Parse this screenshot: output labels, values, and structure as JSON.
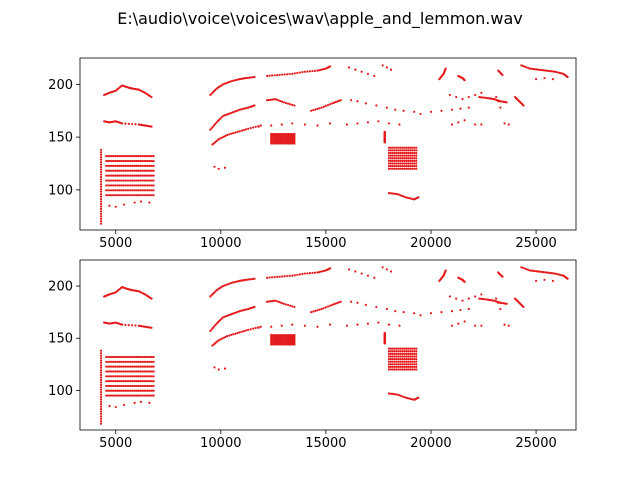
{
  "figure": {
    "title": "E:\\audio\\voice\\voices\\wav\\apple_and_lemmon.wav"
  },
  "chart_data": [
    {
      "type": "scatter",
      "marker_color": "#e41a1c",
      "xlim": [
        3300,
        26900
      ],
      "ylim": [
        62,
        225
      ],
      "xticks": [
        5000,
        10000,
        15000,
        20000,
        25000
      ],
      "yticks": [
        100,
        150,
        200
      ],
      "xtick_labels": [
        "5000",
        "10000",
        "15000",
        "20000",
        "25000"
      ],
      "ytick_labels": [
        "100",
        "150",
        "200"
      ],
      "grid": false,
      "segments": [
        {
          "kind": "dense_vertical",
          "x": [
            4300,
            4300
          ],
          "y": [
            68,
            138
          ]
        },
        {
          "kind": "dense_band",
          "x": [
            4550,
            6800
          ],
          "y": [
            95,
            132
          ]
        },
        {
          "kind": "points",
          "x": [
            4700,
            5000,
            5400,
            5900,
            6200,
            6600
          ],
          "y": [
            85,
            84,
            86,
            88,
            89,
            88
          ]
        },
        {
          "kind": "curve",
          "x": [
            4450,
            4700,
            5000,
            5300,
            5600,
            5800,
            6100,
            6400,
            6700
          ],
          "y": [
            190,
            192,
            194,
            199,
            197,
            196,
            195,
            192,
            188
          ]
        },
        {
          "kind": "curve",
          "x": [
            4450,
            4700,
            5000,
            5300,
            6100,
            6400,
            6700
          ],
          "y": [
            165,
            164,
            165,
            163,
            162,
            161,
            160
          ]
        },
        {
          "kind": "curve",
          "x": [
            9500,
            9800,
            10100,
            10500,
            10900,
            11200,
            11600
          ],
          "y": [
            190,
            196,
            200,
            203,
            205,
            206,
            207
          ]
        },
        {
          "kind": "curve",
          "x": [
            9500,
            9800,
            10100,
            10500,
            10900,
            11300,
            11600
          ],
          "y": [
            157,
            164,
            170,
            173,
            176,
            178,
            180
          ]
        },
        {
          "kind": "curve",
          "x": [
            9600,
            9900,
            10300,
            10800,
            11300,
            11900
          ],
          "y": [
            143,
            148,
            152,
            155,
            158,
            161
          ]
        },
        {
          "kind": "points",
          "x": [
            9700,
            9900,
            10200
          ],
          "y": [
            122,
            120,
            121
          ]
        },
        {
          "kind": "curve",
          "x": [
            12200,
            12800,
            13400,
            14000,
            14600,
            15000,
            15200
          ],
          "y": [
            208,
            209,
            210,
            212,
            213,
            215,
            217
          ]
        },
        {
          "kind": "curve",
          "x": [
            12200,
            12600,
            13000,
            13500
          ],
          "y": [
            185,
            186,
            183,
            180
          ]
        },
        {
          "kind": "points",
          "x": [
            11800,
            12400,
            12900,
            13400,
            14000,
            14600,
            15200
          ],
          "y": [
            160,
            161,
            162,
            163,
            162,
            161,
            163
          ]
        },
        {
          "kind": "dense_band",
          "x": [
            12400,
            13500
          ],
          "y": [
            144,
            153
          ]
        },
        {
          "kind": "curve",
          "x": [
            14300,
            14800,
            15300,
            15700
          ],
          "y": [
            175,
            178,
            182,
            185
          ]
        },
        {
          "kind": "points",
          "x": [
            16100,
            16400,
            16700,
            17000,
            17300
          ],
          "y": [
            216,
            214,
            212,
            210,
            208
          ]
        },
        {
          "kind": "points",
          "x": [
            16200,
            16500,
            16900,
            17400,
            17900,
            18300,
            18700,
            19200
          ],
          "y": [
            185,
            184,
            182,
            180,
            178,
            176,
            175,
            174
          ]
        },
        {
          "kind": "points",
          "x": [
            16000,
            16500,
            17000,
            17500,
            18000,
            18500
          ],
          "y": [
            162,
            163,
            164,
            165,
            163,
            162
          ]
        },
        {
          "kind": "points",
          "x": [
            17700,
            17900,
            18100
          ],
          "y": [
            218,
            216,
            214
          ]
        },
        {
          "kind": "dense_vertical",
          "x": [
            17800,
            17800
          ],
          "y": [
            145,
            155
          ]
        },
        {
          "kind": "dense_band",
          "x": [
            18000,
            19300
          ],
          "y": [
            120,
            140
          ]
        },
        {
          "kind": "curve",
          "x": [
            18000,
            18400,
            18800,
            19200,
            19400
          ],
          "y": [
            97,
            96,
            93,
            91,
            93
          ]
        },
        {
          "kind": "points",
          "x": [
            19500,
            20000,
            20500,
            21000,
            21400,
            21800
          ],
          "y": [
            172,
            174,
            175,
            176,
            177,
            178
          ]
        },
        {
          "kind": "curve",
          "x": [
            20400,
            20600,
            20700
          ],
          "y": [
            205,
            210,
            215
          ]
        },
        {
          "kind": "points",
          "x": [
            20900,
            21200,
            21500,
            21800,
            22100,
            22400
          ],
          "y": [
            190,
            188,
            186,
            188,
            190,
            192
          ]
        },
        {
          "kind": "points",
          "x": [
            21000,
            21300,
            21600,
            22100,
            22400
          ],
          "y": [
            162,
            164,
            166,
            162,
            162
          ]
        },
        {
          "kind": "curve",
          "x": [
            21300,
            21500,
            21600
          ],
          "y": [
            208,
            206,
            204
          ]
        },
        {
          "kind": "curve",
          "x": [
            22300,
            22700,
            23000,
            23300,
            23600
          ],
          "y": [
            188,
            187,
            186,
            184,
            183
          ]
        },
        {
          "kind": "curve",
          "x": [
            23200,
            23400
          ],
          "y": [
            213,
            209
          ]
        },
        {
          "kind": "points",
          "x": [
            23100,
            23200,
            23300
          ],
          "y": [
            188,
            184,
            178
          ]
        },
        {
          "kind": "points",
          "x": [
            23500,
            23700
          ],
          "y": [
            163,
            162
          ]
        },
        {
          "kind": "curve",
          "x": [
            24000,
            24200,
            24400
          ],
          "y": [
            188,
            184,
            180
          ]
        },
        {
          "kind": "curve",
          "x": [
            24300,
            24700,
            25100,
            25500,
            25900,
            26300,
            26500
          ],
          "y": [
            218,
            215,
            214,
            213,
            212,
            210,
            207
          ]
        },
        {
          "kind": "points",
          "x": [
            25000,
            25400,
            25800
          ],
          "y": [
            205,
            206,
            205
          ]
        }
      ]
    },
    {
      "type": "scatter",
      "marker_color": "#e41a1c",
      "xlim": [
        3300,
        26900
      ],
      "ylim": [
        62,
        225
      ],
      "xticks": [
        5000,
        10000,
        15000,
        20000,
        25000
      ],
      "yticks": [
        100,
        150,
        200
      ],
      "xtick_labels": [
        "5000",
        "10000",
        "15000",
        "20000",
        "25000"
      ],
      "ytick_labels": [
        "100",
        "150",
        "200"
      ],
      "grid": false,
      "segments": [
        {
          "kind": "dense_vertical",
          "x": [
            4300,
            4300
          ],
          "y": [
            68,
            138
          ]
        },
        {
          "kind": "dense_band",
          "x": [
            4550,
            6800
          ],
          "y": [
            95,
            132
          ]
        },
        {
          "kind": "points",
          "x": [
            4700,
            5000,
            5400,
            5900,
            6200,
            6600
          ],
          "y": [
            85,
            84,
            86,
            88,
            89,
            88
          ]
        },
        {
          "kind": "curve",
          "x": [
            4450,
            4700,
            5000,
            5300,
            5600,
            5800,
            6100,
            6400,
            6700
          ],
          "y": [
            190,
            192,
            194,
            199,
            197,
            196,
            195,
            192,
            188
          ]
        },
        {
          "kind": "curve",
          "x": [
            4450,
            4700,
            5000,
            5300,
            6100,
            6400,
            6700
          ],
          "y": [
            165,
            164,
            165,
            163,
            162,
            161,
            160
          ]
        },
        {
          "kind": "curve",
          "x": [
            9500,
            9800,
            10100,
            10500,
            10900,
            11200,
            11600
          ],
          "y": [
            190,
            196,
            200,
            203,
            205,
            206,
            207
          ]
        },
        {
          "kind": "curve",
          "x": [
            9500,
            9800,
            10100,
            10500,
            10900,
            11300,
            11600
          ],
          "y": [
            157,
            164,
            170,
            173,
            176,
            178,
            180
          ]
        },
        {
          "kind": "curve",
          "x": [
            9600,
            9900,
            10300,
            10800,
            11300,
            11900
          ],
          "y": [
            143,
            148,
            152,
            155,
            158,
            161
          ]
        },
        {
          "kind": "points",
          "x": [
            9700,
            9900,
            10200
          ],
          "y": [
            122,
            120,
            121
          ]
        },
        {
          "kind": "curve",
          "x": [
            12200,
            12800,
            13400,
            14000,
            14600,
            15000,
            15200
          ],
          "y": [
            208,
            209,
            210,
            212,
            213,
            215,
            217
          ]
        },
        {
          "kind": "curve",
          "x": [
            12200,
            12600,
            13000,
            13500
          ],
          "y": [
            185,
            186,
            183,
            180
          ]
        },
        {
          "kind": "points",
          "x": [
            11800,
            12400,
            12900,
            13400,
            14000,
            14600,
            15200
          ],
          "y": [
            160,
            161,
            162,
            163,
            162,
            161,
            163
          ]
        },
        {
          "kind": "dense_band",
          "x": [
            12400,
            13500
          ],
          "y": [
            144,
            153
          ]
        },
        {
          "kind": "curve",
          "x": [
            14300,
            14800,
            15300,
            15700
          ],
          "y": [
            175,
            178,
            182,
            185
          ]
        },
        {
          "kind": "points",
          "x": [
            16100,
            16400,
            16700,
            17000,
            17300
          ],
          "y": [
            216,
            214,
            212,
            210,
            208
          ]
        },
        {
          "kind": "points",
          "x": [
            16200,
            16500,
            16900,
            17400,
            17900,
            18300,
            18700,
            19200
          ],
          "y": [
            185,
            184,
            182,
            180,
            178,
            176,
            175,
            174
          ]
        },
        {
          "kind": "points",
          "x": [
            16000,
            16500,
            17000,
            17500,
            18000,
            18500
          ],
          "y": [
            162,
            163,
            164,
            165,
            163,
            162
          ]
        },
        {
          "kind": "points",
          "x": [
            17700,
            17900,
            18100
          ],
          "y": [
            218,
            216,
            214
          ]
        },
        {
          "kind": "dense_vertical",
          "x": [
            17800,
            17800
          ],
          "y": [
            145,
            155
          ]
        },
        {
          "kind": "dense_band",
          "x": [
            18000,
            19300
          ],
          "y": [
            120,
            140
          ]
        },
        {
          "kind": "curve",
          "x": [
            18000,
            18400,
            18800,
            19200,
            19400
          ],
          "y": [
            97,
            96,
            93,
            91,
            93
          ]
        },
        {
          "kind": "points",
          "x": [
            19500,
            20000,
            20500,
            21000,
            21400,
            21800
          ],
          "y": [
            172,
            174,
            175,
            176,
            177,
            178
          ]
        },
        {
          "kind": "curve",
          "x": [
            20400,
            20600,
            20700
          ],
          "y": [
            205,
            210,
            215
          ]
        },
        {
          "kind": "points",
          "x": [
            20900,
            21200,
            21500,
            21800,
            22100,
            22400
          ],
          "y": [
            190,
            188,
            186,
            188,
            190,
            192
          ]
        },
        {
          "kind": "points",
          "x": [
            21000,
            21300,
            21600,
            22100,
            22400
          ],
          "y": [
            162,
            164,
            166,
            162,
            162
          ]
        },
        {
          "kind": "curve",
          "x": [
            21300,
            21500,
            21600
          ],
          "y": [
            208,
            206,
            204
          ]
        },
        {
          "kind": "curve",
          "x": [
            22300,
            22700,
            23000,
            23300,
            23600
          ],
          "y": [
            188,
            187,
            186,
            184,
            183
          ]
        },
        {
          "kind": "curve",
          "x": [
            23200,
            23400
          ],
          "y": [
            213,
            209
          ]
        },
        {
          "kind": "points",
          "x": [
            23100,
            23200,
            23300
          ],
          "y": [
            188,
            184,
            178
          ]
        },
        {
          "kind": "points",
          "x": [
            23500,
            23700
          ],
          "y": [
            163,
            162
          ]
        },
        {
          "kind": "curve",
          "x": [
            24000,
            24200,
            24400
          ],
          "y": [
            188,
            184,
            180
          ]
        },
        {
          "kind": "curve",
          "x": [
            24300,
            24700,
            25100,
            25500,
            25900,
            26300,
            26500
          ],
          "y": [
            218,
            215,
            214,
            213,
            212,
            210,
            207
          ]
        },
        {
          "kind": "points",
          "x": [
            25000,
            25400,
            25800
          ],
          "y": [
            205,
            206,
            205
          ]
        }
      ]
    }
  ]
}
